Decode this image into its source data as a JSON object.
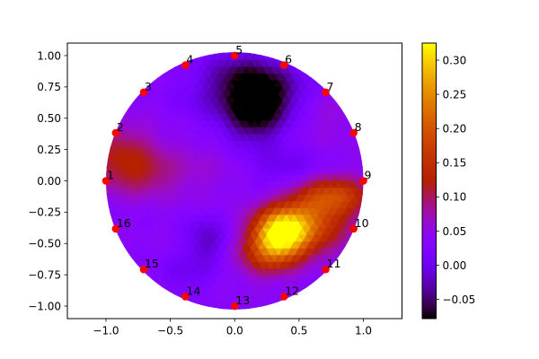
{
  "chart_data": {
    "type": "heatmap",
    "title": "",
    "xlabel": "",
    "ylabel": "",
    "xlim": [
      -1.3,
      1.3
    ],
    "ylim": [
      -1.1,
      1.1
    ],
    "xticks": [
      -1.0,
      -0.5,
      0.0,
      0.5,
      1.0
    ],
    "xtick_labels": [
      "−1.0",
      "−0.5",
      "0.0",
      "0.5",
      "1.0"
    ],
    "yticks": [
      1.0,
      0.75,
      0.5,
      0.25,
      0.0,
      -0.25,
      -0.5,
      -0.75,
      -1.0
    ],
    "ytick_labels": [
      "1.00",
      "0.75",
      "0.50",
      "0.25",
      "0.00",
      "−0.25",
      "−0.50",
      "−0.75",
      "−1.00"
    ],
    "domain": "unit-disk",
    "colormap": "gnuplot",
    "colorbar": {
      "vmin": -0.078,
      "vmax": 0.325,
      "ticks": [
        0.3,
        0.25,
        0.2,
        0.15,
        0.1,
        0.05,
        0.0,
        -0.05
      ],
      "tick_labels": [
        "0.30",
        "0.25",
        "0.20",
        "0.15",
        "0.10",
        "0.05",
        "0.00",
        "−0.05"
      ]
    },
    "field": {
      "background": 0.035,
      "blobs": [
        {
          "x": 0.36,
          "y": -0.42,
          "amp": 0.29,
          "sx": 0.15,
          "sy": 0.13
        },
        {
          "x": 0.58,
          "y": -0.28,
          "amp": 0.1,
          "sx": 0.2,
          "sy": 0.14
        },
        {
          "x": 0.78,
          "y": -0.12,
          "amp": 0.13,
          "sx": 0.2,
          "sy": 0.11
        },
        {
          "x": 0.25,
          "y": -0.6,
          "amp": 0.09,
          "sx": 0.16,
          "sy": 0.12
        },
        {
          "x": 0.65,
          "y": -0.45,
          "amp": 0.05,
          "sx": 0.18,
          "sy": 0.12
        },
        {
          "x": 0.15,
          "y": 0.55,
          "amp": -0.12,
          "sx": 0.17,
          "sy": 0.17
        },
        {
          "x": 0.05,
          "y": 0.82,
          "amp": -0.08,
          "sx": 0.22,
          "sy": 0.15
        },
        {
          "x": 0.35,
          "y": 0.72,
          "amp": -0.05,
          "sx": 0.18,
          "sy": 0.15
        },
        {
          "x": -0.88,
          "y": 0.2,
          "amp": 0.075,
          "sx": 0.2,
          "sy": 0.18
        },
        {
          "x": -0.7,
          "y": 0.05,
          "amp": 0.04,
          "sx": 0.2,
          "sy": 0.12
        },
        {
          "x": -0.22,
          "y": -0.48,
          "amp": -0.055,
          "sx": 0.12,
          "sy": 0.14
        },
        {
          "x": -0.4,
          "y": -0.75,
          "amp": -0.03,
          "sx": 0.14,
          "sy": 0.1
        },
        {
          "x": 0.4,
          "y": 0.1,
          "amp": -0.035,
          "sx": 0.2,
          "sy": 0.14
        },
        {
          "x": -0.25,
          "y": 0.6,
          "amp": -0.02,
          "sx": 0.2,
          "sy": 0.15
        },
        {
          "x": 0.7,
          "y": 0.5,
          "amp": 0.02,
          "sx": 0.18,
          "sy": 0.18
        },
        {
          "x": -0.3,
          "y": 0.1,
          "amp": 0.02,
          "sx": 0.25,
          "sy": 0.2
        }
      ]
    },
    "electrodes": [
      {
        "label": "1",
        "x": -1.0,
        "y": 0.0
      },
      {
        "label": "2",
        "x": -0.924,
        "y": 0.383
      },
      {
        "label": "3",
        "x": -0.707,
        "y": 0.707
      },
      {
        "label": "4",
        "x": -0.383,
        "y": 0.924
      },
      {
        "label": "5",
        "x": 0.0,
        "y": 1.0
      },
      {
        "label": "6",
        "x": 0.383,
        "y": 0.924
      },
      {
        "label": "7",
        "x": 0.707,
        "y": 0.707
      },
      {
        "label": "8",
        "x": 0.924,
        "y": 0.383
      },
      {
        "label": "9",
        "x": 1.0,
        "y": 0.0
      },
      {
        "label": "10",
        "x": 0.924,
        "y": -0.383
      },
      {
        "label": "11",
        "x": 0.707,
        "y": -0.707
      },
      {
        "label": "12",
        "x": 0.383,
        "y": -0.924
      },
      {
        "label": "13",
        "x": 0.0,
        "y": -1.0
      },
      {
        "label": "14",
        "x": -0.383,
        "y": -0.924
      },
      {
        "label": "15",
        "x": -0.707,
        "y": -0.707
      },
      {
        "label": "16",
        "x": -0.924,
        "y": -0.383
      }
    ],
    "electrode_color": "#ff0000",
    "grid": false,
    "legend": "none"
  }
}
